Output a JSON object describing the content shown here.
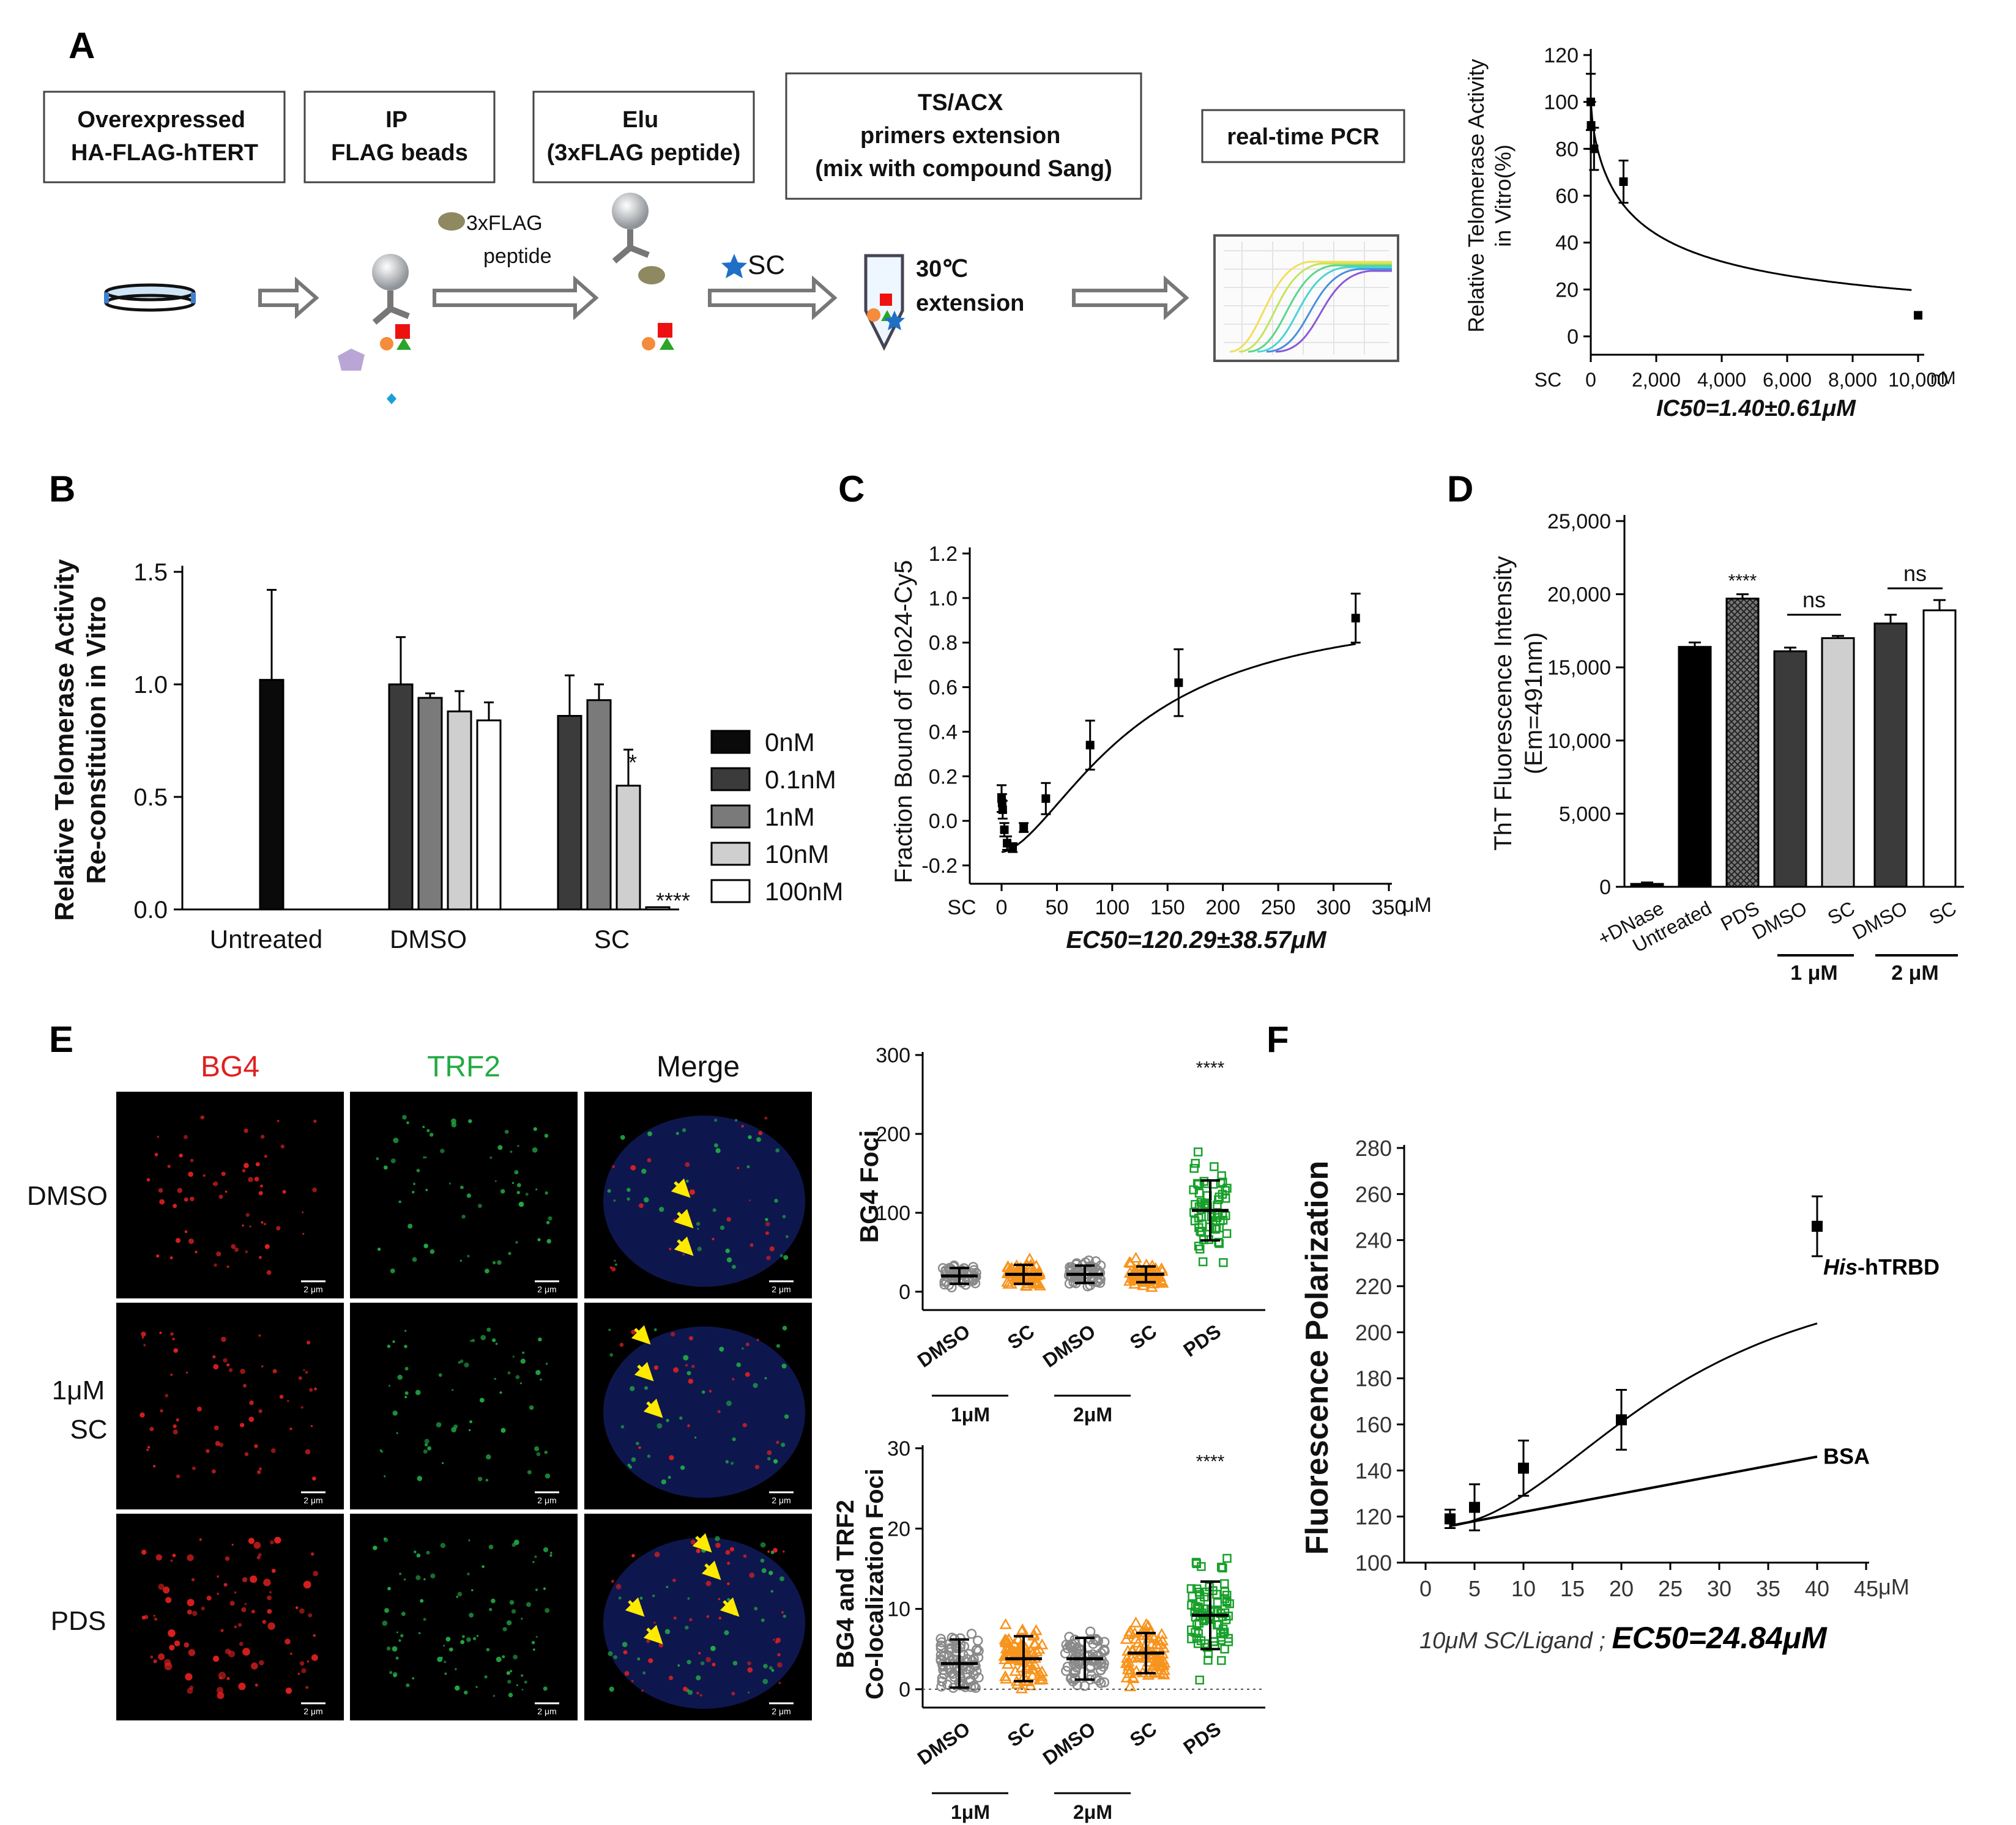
{
  "colors": {
    "bar_0nM": "#0a0a0a",
    "bar_0_1nM": "#3b3b3b",
    "bar_1nM": "#7a7a7a",
    "bar_10nM": "#cfcfcf",
    "bar_100nM": "#ffffff",
    "grey_points": "#8a8a8a",
    "orange_points": "#f7941d",
    "green_points": "#17a02a",
    "bg4_red": "#e02020",
    "trf2_green": "#22aa44",
    "arrow_yellow": "#ffea00"
  },
  "panel_labels": {
    "a": "A",
    "b": "B",
    "c": "C",
    "d": "D",
    "e": "E",
    "f": "F"
  },
  "panel_a": {
    "steps": [
      {
        "lines": [
          "Overexpressed",
          "HA-FLAG-hTERT"
        ]
      },
      {
        "lines": [
          "IP",
          "FLAG beads"
        ]
      },
      {
        "lines": [
          "Elu",
          "(3xFLAG peptide)"
        ]
      },
      {
        "lines": [
          "TS/ACX",
          "primers extension",
          "(mix with compound Sang)"
        ]
      },
      {
        "lines": [
          "real-time PCR"
        ]
      }
    ],
    "peptide_label": [
      "3xFLAG",
      "peptide"
    ],
    "sc_label": "SC",
    "incubation_label": [
      "30℃",
      "extension"
    ]
  },
  "chart_data": [
    {
      "id": "A-right",
      "type": "scatter",
      "title": "",
      "ylabel": [
        "Relative Telomerase Activity",
        "in Vitro(%)"
      ],
      "xlabel": "IC50=1.40±0.61μM",
      "x_unit": "nM",
      "x_first_label": "SC",
      "xlim": [
        0,
        10000
      ],
      "ylim": [
        0,
        120
      ],
      "xticks": [
        0,
        2000,
        4000,
        6000,
        8000,
        10000
      ],
      "xtick_labels": [
        "0",
        "2,000",
        "4,000",
        "6,000",
        "8,000",
        "10,000"
      ],
      "yticks": [
        0,
        20,
        40,
        60,
        80,
        100,
        120
      ],
      "points": [
        {
          "x": 0,
          "y": 100,
          "err": 12
        },
        {
          "x": 10,
          "y": 90,
          "err": 10
        },
        {
          "x": 100,
          "y": 80,
          "err": 9
        },
        {
          "x": 1000,
          "y": 66,
          "err": 9
        },
        {
          "x": 10000,
          "y": 9,
          "err": 0
        }
      ],
      "fit": "IC50 curve"
    },
    {
      "id": "B",
      "type": "bar",
      "ylabel": [
        "Relative Telomerase Activity",
        "Re-constituion in Vitro"
      ],
      "ylim": [
        0,
        1.5
      ],
      "yticks": [
        0.0,
        0.5,
        1.0,
        1.5
      ],
      "ytick_labels": [
        "0.0",
        "0.5",
        "1.0",
        "1.5"
      ],
      "groups": [
        "Untreated",
        "DMSO",
        "SC"
      ],
      "series": [
        {
          "name": "0nM",
          "values": [
            1.02,
            null,
            null
          ],
          "err": [
            0.4,
            null,
            null
          ]
        },
        {
          "name": "0.1nM",
          "values": [
            null,
            1.0,
            0.86
          ],
          "err": [
            null,
            0.21,
            0.18
          ]
        },
        {
          "name": "1nM",
          "values": [
            null,
            0.94,
            0.93
          ],
          "err": [
            null,
            0.02,
            0.07
          ]
        },
        {
          "name": "10nM",
          "values": [
            null,
            0.88,
            0.55
          ],
          "err": [
            null,
            0.09,
            0.16
          ]
        },
        {
          "name": "100nM",
          "values": [
            null,
            0.84,
            0.01
          ],
          "err": [
            null,
            0.08,
            0.0
          ]
        }
      ],
      "annotations": [
        "*",
        "****"
      ]
    },
    {
      "id": "C",
      "type": "scatter",
      "ylabel": "Fraction Bound of Telo24-Cy5",
      "xlabel": "EC50=120.29±38.57μM",
      "x_unit": "μM",
      "x_first_label": "SC",
      "xlim": [
        0,
        350
      ],
      "ylim": [
        -0.2,
        1.2
      ],
      "xticks": [
        0,
        50,
        100,
        150,
        200,
        250,
        300,
        350
      ],
      "xtick_labels": [
        "0",
        "50",
        "100",
        "150",
        "200",
        "250",
        "300",
        "350"
      ],
      "yticks": [
        -0.2,
        0.0,
        0.2,
        0.4,
        0.6,
        0.8,
        1.0,
        1.2
      ],
      "ytick_labels": [
        "-0.2",
        "0.0",
        "0.2",
        "0.4",
        "0.6",
        "0.8",
        "1.0",
        "1.2"
      ],
      "points": [
        {
          "x": 0,
          "y": 0.1,
          "err": 0.06
        },
        {
          "x": 0.5,
          "y": 0.08,
          "err": 0.04
        },
        {
          "x": 1,
          "y": 0.05,
          "err": 0.04
        },
        {
          "x": 2.5,
          "y": -0.04,
          "err": 0.03
        },
        {
          "x": 5,
          "y": -0.1,
          "err": 0.03
        },
        {
          "x": 10,
          "y": -0.12,
          "err": 0.02
        },
        {
          "x": 20,
          "y": -0.03,
          "err": 0.02
        },
        {
          "x": 40,
          "y": 0.1,
          "err": 0.07
        },
        {
          "x": 80,
          "y": 0.34,
          "err": 0.11
        },
        {
          "x": 160,
          "y": 0.62,
          "err": 0.15
        },
        {
          "x": 320,
          "y": 0.91,
          "err": 0.11
        }
      ]
    },
    {
      "id": "D",
      "type": "bar",
      "ylabel": [
        "ThT Fluorescence Intensity",
        "(Em=491nm)"
      ],
      "ylim": [
        0,
        25000
      ],
      "yticks": [
        0,
        5000,
        10000,
        15000,
        20000,
        25000
      ],
      "ytick_labels": [
        "0",
        "5,000",
        "10,000",
        "15,000",
        "20,000",
        "25,000"
      ],
      "categories": [
        "+DNase",
        "Untreated",
        "PDS",
        "DMSO",
        "SC",
        "DMSO",
        "SC"
      ],
      "values": [
        200,
        16400,
        19700,
        16100,
        17000,
        18000,
        18900
      ],
      "err": [
        100,
        300,
        300,
        250,
        150,
        600,
        700
      ],
      "fills": [
        "#000000",
        "#000000",
        "hatch",
        "#3b3b3b",
        "#cfcfcf",
        "#3b3b3b",
        "#ffffff"
      ],
      "group_labels": [
        "1 μM",
        "2 μM"
      ],
      "annotations": [
        "****",
        "ns",
        "ns"
      ]
    },
    {
      "id": "E-top",
      "type": "scatter",
      "ylabel": "BG4  Foci",
      "ylim": [
        0,
        300
      ],
      "yticks": [
        0,
        100,
        200,
        300
      ],
      "categories": [
        "DMSO",
        "SC",
        "DMSO",
        "SC",
        "PDS"
      ],
      "group_labels": [
        "1μM",
        "2μM"
      ],
      "means": [
        20,
        22,
        22,
        22,
        103
      ],
      "sd": [
        10,
        12,
        11,
        10,
        38
      ],
      "annotation": "****"
    },
    {
      "id": "E-bottom",
      "type": "scatter",
      "ylabel": [
        "BG4 and TRF2",
        "Co-localization Foci"
      ],
      "ylim": [
        0,
        30
      ],
      "yticks": [
        0,
        10,
        20,
        30
      ],
      "categories": [
        "DMSO",
        "SC",
        "DMSO",
        "SC",
        "PDS"
      ],
      "group_labels": [
        "1μM",
        "2μM"
      ],
      "means": [
        3.2,
        3.8,
        3.8,
        4.5,
        9.2
      ],
      "sd": [
        3.0,
        2.8,
        2.6,
        2.5,
        4.2
      ],
      "annotation": "****"
    },
    {
      "id": "F",
      "type": "line",
      "ylabel": "Fluorescence Polarization",
      "xlabel_italic": "10μM SC/Ligand ; ",
      "xlabel_bold": "EC50=24.84μM",
      "x_unit": "μM",
      "xlim": [
        0,
        45
      ],
      "ylim": [
        100,
        280
      ],
      "xticks": [
        0,
        5,
        10,
        15,
        20,
        25,
        30,
        35,
        40,
        45
      ],
      "yticks": [
        100,
        120,
        140,
        160,
        180,
        200,
        220,
        240,
        260,
        280
      ],
      "series": [
        {
          "name_italic": "His",
          "name_rest": "-hTRBD",
          "points": [
            {
              "x": 2.5,
              "y": 119,
              "err": 4
            },
            {
              "x": 5,
              "y": 124,
              "err": 10
            },
            {
              "x": 10,
              "y": 141,
              "err": 12
            },
            {
              "x": 20,
              "y": 162,
              "err": 13
            },
            {
              "x": 40,
              "y": 246,
              "err": 13
            }
          ]
        },
        {
          "name": "BSA",
          "line": [
            {
              "x": 2.5,
              "y": 116
            },
            {
              "x": 40,
              "y": 146
            }
          ]
        }
      ]
    }
  ],
  "panel_e_images": {
    "column_titles": [
      "BG4",
      "TRF2",
      "Merge"
    ],
    "row_labels": [
      [
        "DMSO"
      ],
      [
        "1μM",
        "SC"
      ],
      [
        "PDS"
      ]
    ],
    "scale_bar": "2 μm"
  }
}
